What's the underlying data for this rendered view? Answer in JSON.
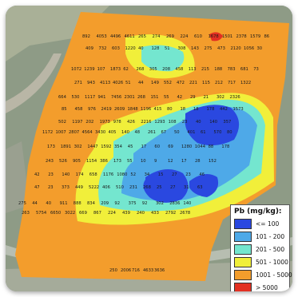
{
  "colors": {
    "lt100": "#2a48e0",
    "c101_200": "#4ea9e8",
    "c201_500": "#74e6cf",
    "c501_1000": "#f1ef3a",
    "c1001_5000": "#f39d2c",
    "gt5000": "#e23022"
  },
  "legend": {
    "title": "Pb (mg/kg):",
    "items": [
      {
        "label": "<= 100",
        "color": "#2a48e0"
      },
      {
        "label": "101 - 200",
        "color": "#4ea9e8"
      },
      {
        "label": "201 - 500",
        "color": "#74e6cf"
      },
      {
        "label": "501 - 1000",
        "color": "#f1ef3a"
      },
      {
        "label": "1001 - 5000",
        "color": "#f39d2c"
      },
      {
        "label": "> 5000",
        "color": "#e23022"
      }
    ]
  },
  "sample_rows": [
    [
      "892",
      "4053",
      "4496",
      "4611",
      "265",
      "274",
      "269",
      "224",
      "610",
      "1678",
      "1501",
      "2378",
      "1579",
      "86"
    ],
    [
      "409",
      "732",
      "603",
      "1220",
      "40",
      "128",
      "51",
      "308",
      "143",
      "275",
      "473",
      "2120",
      "1056",
      "30"
    ],
    [
      "1072",
      "1239",
      "107",
      "1873",
      "62",
      "268",
      "305",
      "208",
      "458",
      "113",
      "215",
      "188",
      "783",
      "681",
      "73"
    ],
    [
      "271",
      "943",
      "4113",
      "4026",
      "51",
      "44",
      "149",
      "552",
      "472",
      "221",
      "115",
      "212",
      "717",
      "1322"
    ],
    [
      "664",
      "530",
      "1117",
      "941",
      "7456",
      "2301",
      "268",
      "151",
      "55",
      "42",
      "29",
      "21",
      "302",
      "2326"
    ],
    [
      "85",
      "458",
      "976",
      "2419",
      "2609",
      "1848",
      "1196",
      "415",
      "80",
      "18",
      "18",
      "178",
      "442",
      "1573"
    ],
    [
      "502",
      "1197",
      "202",
      "1973",
      "978",
      "426",
      "2216",
      "1293",
      "108",
      "23",
      "40",
      "140",
      "357"
    ],
    [
      "1172",
      "1007",
      "2807",
      "4564",
      "3430",
      "405",
      "140",
      "48",
      "261",
      "67",
      "50",
      "401",
      "61",
      "570",
      "80"
    ],
    [
      "173",
      "1891",
      "302",
      "1447",
      "1592",
      "354",
      "45",
      "17",
      "60",
      "69",
      "1280",
      "1044",
      "88",
      "178"
    ],
    [
      "243",
      "526",
      "905",
      "1154",
      "386",
      "173",
      "55",
      "10",
      "9",
      "12",
      "17",
      "28",
      "152"
    ],
    [
      "42",
      "23",
      "140",
      "174",
      "658",
      "1176",
      "1080",
      "52",
      "34",
      "15",
      "27",
      "23",
      "46"
    ],
    [
      "47",
      "23",
      "373",
      "449",
      "5222",
      "406",
      "510",
      "231",
      "268",
      "25",
      "27",
      "31",
      "63"
    ],
    [
      "275",
      "44",
      "40",
      "911",
      "888",
      "834",
      "209",
      "92",
      "375",
      "92",
      "302",
      "2836",
      "140"
    ],
    [
      "263",
      "5754",
      "6650",
      "3022",
      "669",
      "867",
      "224",
      "439",
      "240",
      "433",
      "2792",
      "2678"
    ],
    [
      "250",
      "2006",
      "716",
      "4633",
      "3636"
    ]
  ]
}
